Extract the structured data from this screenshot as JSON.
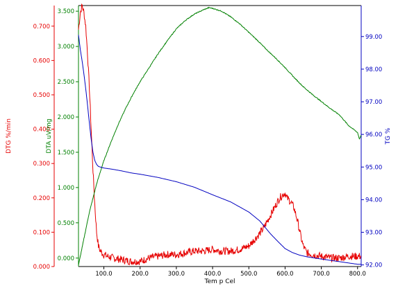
{
  "chart_data": {
    "type": "line",
    "xlabel": "Tem p Cel",
    "x_ticks": [
      100.0,
      200.0,
      300.0,
      400.0,
      500.0,
      600.0,
      700.0,
      800.0
    ],
    "x_tick_labels": [
      "100.0",
      "200.0",
      "300.0",
      "400.0",
      "500.0",
      "600.0",
      "700.0",
      "800.0"
    ],
    "xlim": [
      30,
      810
    ],
    "grid": false,
    "axes": {
      "dtg": {
        "label": "DTG %/min",
        "color": "#e60000",
        "side": "left",
        "ylim": [
          0,
          0.76
        ],
        "ticks": [
          0,
          0.1,
          0.2,
          0.3,
          0.4,
          0.5,
          0.6,
          0.7
        ],
        "tick_labels": [
          "0.000",
          "0.100",
          "0.200",
          "0.300",
          "0.400",
          "0.500",
          "0.600",
          "0.700"
        ]
      },
      "dta": {
        "label": "DTA uV/mg",
        "color": "#008000",
        "side": "left",
        "ylim": [
          -0.12,
          3.58
        ],
        "ticks": [
          0,
          0.5,
          1.0,
          1.5,
          2.0,
          2.5,
          3.0,
          3.5
        ],
        "tick_labels": [
          "0.000",
          "0.500",
          "1.000",
          "1.500",
          "2.000",
          "2.500",
          "3.000",
          "3.500"
        ]
      },
      "tg": {
        "label": "TG %",
        "color": "#0000c0",
        "side": "right",
        "ylim": [
          91.95,
          99.95
        ],
        "ticks": [
          92,
          93,
          94,
          95,
          96,
          97,
          98,
          99
        ],
        "tick_labels": [
          "92.00",
          "93.00",
          "94.00",
          "95.00",
          "96.00",
          "97.00",
          "98.00",
          "99.00"
        ]
      }
    },
    "series": [
      {
        "name": "DTG",
        "axis": "dtg",
        "color": "#e60000",
        "noise": 0.011,
        "x": [
          30,
          35,
          40,
          45,
          50,
          55,
          60,
          65,
          70,
          75,
          80,
          85,
          90,
          95,
          100,
          110,
          125,
          150,
          175,
          200,
          225,
          250,
          275,
          300,
          325,
          350,
          375,
          400,
          425,
          450,
          475,
          500,
          525,
          540,
          555,
          565,
          575,
          585,
          595,
          600,
          605,
          615,
          625,
          635,
          645,
          650,
          660,
          675,
          700,
          725,
          750,
          775,
          800,
          810
        ],
        "y": [
          0.69,
          0.74,
          0.76,
          0.74,
          0.7,
          0.62,
          0.52,
          0.4,
          0.28,
          0.18,
          0.1,
          0.06,
          0.045,
          0.04,
          0.035,
          0.03,
          0.025,
          0.02,
          0.015,
          0.015,
          0.025,
          0.03,
          0.035,
          0.035,
          0.04,
          0.045,
          0.045,
          0.05,
          0.045,
          0.045,
          0.05,
          0.06,
          0.09,
          0.11,
          0.14,
          0.16,
          0.18,
          0.2,
          0.21,
          0.215,
          0.2,
          0.19,
          0.17,
          0.13,
          0.08,
          0.06,
          0.04,
          0.035,
          0.03,
          0.025,
          0.025,
          0.03,
          0.03,
          0.03
        ]
      },
      {
        "name": "DTA",
        "axis": "dta",
        "color": "#008000",
        "noise": 0.006,
        "x": [
          30,
          40,
          50,
          60,
          70,
          80,
          90,
          100,
          120,
          140,
          160,
          180,
          200,
          225,
          250,
          275,
          300,
          325,
          350,
          375,
          390,
          400,
          425,
          450,
          475,
          500,
          525,
          550,
          575,
          600,
          625,
          650,
          675,
          700,
          725,
          750,
          775,
          790,
          800,
          805,
          810
        ],
        "y": [
          -0.1,
          0.15,
          0.4,
          0.65,
          0.85,
          1.05,
          1.22,
          1.38,
          1.65,
          1.9,
          2.12,
          2.32,
          2.5,
          2.7,
          2.9,
          3.08,
          3.25,
          3.37,
          3.46,
          3.52,
          3.55,
          3.54,
          3.5,
          3.42,
          3.32,
          3.2,
          3.08,
          2.95,
          2.83,
          2.7,
          2.56,
          2.43,
          2.32,
          2.22,
          2.12,
          2.03,
          1.88,
          1.82,
          1.78,
          1.69,
          1.74
        ]
      },
      {
        "name": "TG",
        "axis": "tg",
        "color": "#0000c0",
        "noise": 0,
        "x": [
          30,
          35,
          40,
          45,
          50,
          55,
          60,
          65,
          70,
          75,
          80,
          85,
          90,
          100,
          125,
          150,
          175,
          200,
          250,
          300,
          350,
          400,
          450,
          500,
          530,
          560,
          580,
          600,
          620,
          640,
          660,
          700,
          750,
          800,
          810
        ],
        "y": [
          99.05,
          98.6,
          98.25,
          97.85,
          97.4,
          96.9,
          96.35,
          95.85,
          95.45,
          95.2,
          95.08,
          95.02,
          95.0,
          94.97,
          94.93,
          94.88,
          94.82,
          94.78,
          94.68,
          94.55,
          94.38,
          94.15,
          93.93,
          93.62,
          93.35,
          92.95,
          92.72,
          92.5,
          92.38,
          92.3,
          92.25,
          92.18,
          92.1,
          92.02,
          92.02
        ]
      }
    ]
  }
}
